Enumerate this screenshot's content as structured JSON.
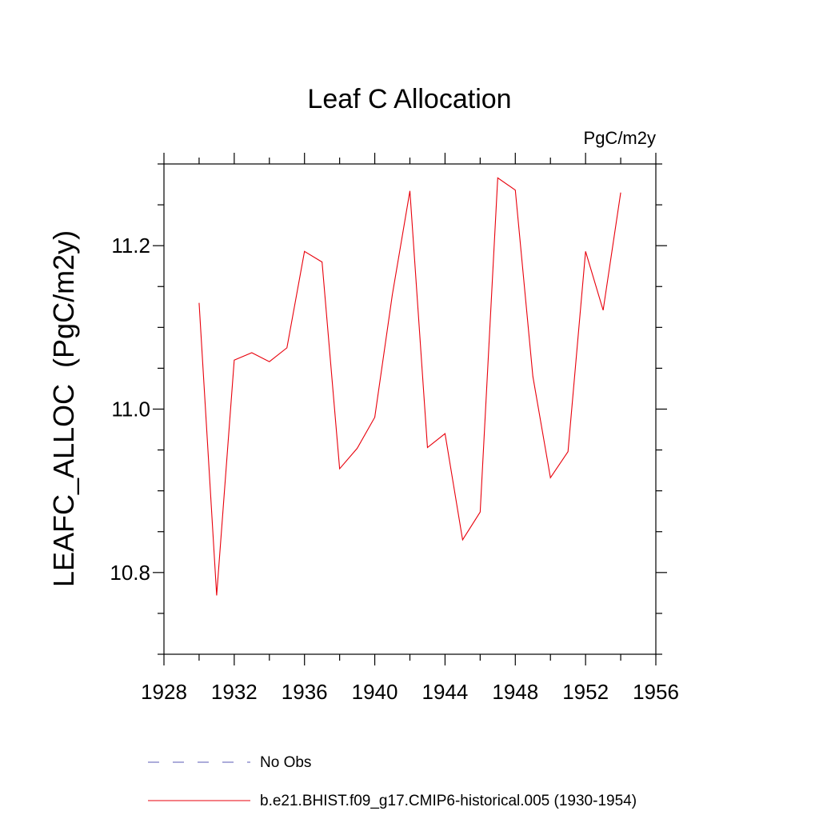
{
  "chart_data": {
    "type": "line",
    "title": "Leaf C Allocation",
    "units_label": "PgC/m2y",
    "ylabel": "LEAFC_ALLOC  (PgC/m2y)",
    "xlabel": "",
    "xlim": [
      1928,
      1956
    ],
    "ylim": [
      10.7,
      11.3
    ],
    "x_ticks": [
      1928,
      1932,
      1936,
      1940,
      1944,
      1948,
      1952,
      1956
    ],
    "y_ticks": [
      10.8,
      11.0,
      11.2
    ],
    "x_tick_labels": [
      "1928",
      "1932",
      "1936",
      "1940",
      "1944",
      "1948",
      "1952",
      "1956"
    ],
    "y_tick_labels": [
      "10.8",
      "11.0",
      "11.2"
    ],
    "grid": false,
    "legend_position": "bottom",
    "series": [
      {
        "name": "b.e21.BHIST.f09_g17.CMIP6-historical.005 (1930-1954)",
        "color": "#e8000b",
        "style": "solid",
        "x": [
          1930,
          1931,
          1932,
          1933,
          1934,
          1935,
          1936,
          1937,
          1938,
          1939,
          1940,
          1941,
          1942,
          1943,
          1944,
          1945,
          1946,
          1947,
          1948,
          1949,
          1950,
          1951,
          1952,
          1953,
          1954
        ],
        "y": [
          11.13,
          10.772,
          11.06,
          11.069,
          11.058,
          11.075,
          11.193,
          11.18,
          10.927,
          10.952,
          10.99,
          11.14,
          11.267,
          10.953,
          10.97,
          10.84,
          10.874,
          11.283,
          11.268,
          11.04,
          10.916,
          10.948,
          11.193,
          11.121,
          11.265
        ]
      }
    ],
    "legend": [
      {
        "name": "No Obs",
        "color": "#5a5ab4",
        "style": "dashed"
      },
      {
        "name": "b.e21.BHIST.f09_g17.CMIP6-historical.005 (1930-1954)",
        "color": "#e8000b",
        "style": "solid"
      }
    ]
  }
}
